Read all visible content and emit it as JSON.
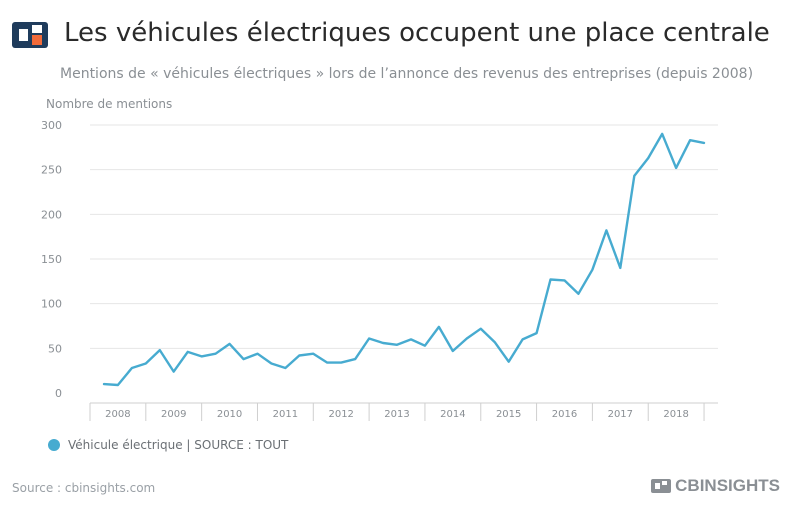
{
  "header": {
    "title": "Les véhicules électriques occupent une place centrale",
    "subtitle": "Mentions de « véhicules électriques » lors de l’annonce des revenus des entreprises (depuis 2008)",
    "logo_icon": "cbinsights-logo-icon"
  },
  "footer": {
    "source": "Source : cbinsights.com",
    "brand": "CBINSIGHTS"
  },
  "colors": {
    "line": "#47abd0",
    "grid": "#e6e6e6",
    "axis_text": "#8a8f94",
    "logo_dark": "#1f3c5c",
    "logo_orange": "#f26b3a"
  },
  "chart_data": {
    "type": "line",
    "ylabel": "Nombre de mentions",
    "ylim": [
      0,
      300
    ],
    "yticks": [
      0,
      50,
      100,
      150,
      200,
      250,
      300
    ],
    "xlim": [
      2007.75,
      2019.0
    ],
    "xticks": [
      "2008",
      "2009",
      "2010",
      "2011",
      "2012",
      "2013",
      "2014",
      "2015",
      "2016",
      "2017",
      "2018"
    ],
    "grid": true,
    "legend": "bottom-left",
    "series": [
      {
        "name": "Véhicule électrique | SOURCE : TOUT",
        "x": [
          2008.0,
          2008.25,
          2008.5,
          2008.75,
          2009.0,
          2009.25,
          2009.5,
          2009.75,
          2010.0,
          2010.25,
          2010.5,
          2010.75,
          2011.0,
          2011.25,
          2011.5,
          2011.75,
          2012.0,
          2012.25,
          2012.5,
          2012.75,
          2013.0,
          2013.25,
          2013.5,
          2013.75,
          2014.0,
          2014.25,
          2014.5,
          2014.75,
          2015.0,
          2015.25,
          2015.5,
          2015.75,
          2016.0,
          2016.25,
          2016.5,
          2016.75,
          2017.0,
          2017.25,
          2017.5,
          2017.75,
          2018.0,
          2018.25,
          2018.5,
          2018.75
        ],
        "values": [
          10,
          9,
          28,
          33,
          48,
          24,
          46,
          41,
          44,
          55,
          38,
          44,
          33,
          28,
          42,
          44,
          34,
          34,
          38,
          61,
          56,
          54,
          60,
          53,
          74,
          47,
          61,
          72,
          57,
          35,
          60,
          67,
          127,
          126,
          111,
          138,
          182,
          140,
          243,
          263,
          290,
          252,
          283,
          280
        ]
      }
    ]
  }
}
